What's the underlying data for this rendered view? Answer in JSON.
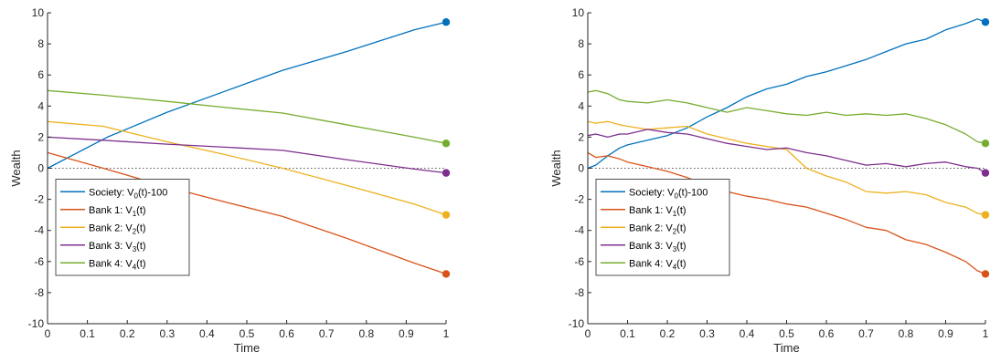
{
  "chart_data": [
    {
      "type": "line",
      "xlabel": "Time",
      "ylabel": "Wealth",
      "xlim": [
        0,
        1
      ],
      "ylim": [
        -10,
        10
      ],
      "xticks": [
        "0",
        "0.1",
        "0.2",
        "0.3",
        "0.4",
        "0.5",
        "0.6",
        "0.7",
        "0.8",
        "0.9",
        "1"
      ],
      "yticks": [
        "-10",
        "-8",
        "-6",
        "-4",
        "-2",
        "0",
        "2",
        "4",
        "6",
        "8",
        "10"
      ],
      "grid": false,
      "legend_position": "bottom-left",
      "reference_line": {
        "y": 0,
        "style": "dotted"
      },
      "series": [
        {
          "name": "Society: V0(t)-100",
          "legend": {
            "pre": "Society: V",
            "sub": "0",
            "post": "(t)-100"
          },
          "color": "#0072BD",
          "x": [
            0,
            0.15,
            0.3,
            0.45,
            0.59,
            0.75,
            0.92,
            1
          ],
          "y": [
            0,
            2.0,
            3.6,
            5.0,
            6.3,
            7.5,
            8.9,
            9.4
          ]
        },
        {
          "name": "Bank 1: V1(t)",
          "legend": {
            "pre": "Bank 1: V",
            "sub": "1",
            "post": "(t)"
          },
          "color": "#D95319",
          "x": [
            0,
            0.14,
            0.3,
            0.45,
            0.59,
            0.75,
            0.92,
            1
          ],
          "y": [
            1.0,
            0.0,
            -1.2,
            -2.2,
            -3.1,
            -4.5,
            -6.1,
            -6.8
          ]
        },
        {
          "name": "Bank 2: V2(t)",
          "legend": {
            "pre": "Bank 2: V",
            "sub": "2",
            "post": "(t)"
          },
          "color": "#EDB120",
          "x": [
            0,
            0.14,
            0.3,
            0.45,
            0.59,
            0.75,
            0.92,
            1
          ],
          "y": [
            3.0,
            2.7,
            1.7,
            0.85,
            0.0,
            -1.1,
            -2.3,
            -3.0
          ]
        },
        {
          "name": "Bank 3: V3(t)",
          "legend": {
            "pre": "Bank 3: V",
            "sub": "3",
            "post": "(t)"
          },
          "color": "#7E2F8E",
          "x": [
            0,
            0.14,
            0.3,
            0.45,
            0.59,
            0.75,
            0.92,
            1
          ],
          "y": [
            2.0,
            1.8,
            1.55,
            1.35,
            1.15,
            0.55,
            -0.05,
            -0.3
          ]
        },
        {
          "name": "Bank 4: V4(t)",
          "legend": {
            "pre": "Bank 4: V",
            "sub": "4",
            "post": "(t)"
          },
          "color": "#77AC30",
          "x": [
            0,
            0.14,
            0.3,
            0.45,
            0.59,
            0.75,
            0.92,
            1
          ],
          "y": [
            5.0,
            4.7,
            4.3,
            3.9,
            3.55,
            2.8,
            2.0,
            1.6
          ]
        }
      ]
    },
    {
      "type": "line",
      "xlabel": "Time",
      "ylabel": "Wealth",
      "xlim": [
        0,
        1
      ],
      "ylim": [
        -10,
        10
      ],
      "xticks": [
        "0",
        "0.1",
        "0.2",
        "0.3",
        "0.4",
        "0.5",
        "0.6",
        "0.7",
        "0.8",
        "0.9",
        "1"
      ],
      "yticks": [
        "-10",
        "-8",
        "-6",
        "-4",
        "-2",
        "0",
        "2",
        "4",
        "6",
        "8",
        "10"
      ],
      "grid": false,
      "legend_position": "bottom-left",
      "reference_line": {
        "y": 0,
        "style": "dotted"
      },
      "series": [
        {
          "name": "Society: V0(t)-100",
          "legend": {
            "pre": "Society: V",
            "sub": "0",
            "post": "(t)-100"
          },
          "color": "#0072BD",
          "x": [
            0,
            0.02,
            0.05,
            0.08,
            0.1,
            0.15,
            0.2,
            0.25,
            0.3,
            0.35,
            0.4,
            0.45,
            0.5,
            0.55,
            0.6,
            0.65,
            0.7,
            0.75,
            0.8,
            0.85,
            0.9,
            0.95,
            0.98,
            1
          ],
          "y": [
            0,
            0.2,
            0.8,
            1.3,
            1.5,
            1.8,
            2.1,
            2.6,
            3.3,
            3.9,
            4.6,
            5.1,
            5.4,
            5.9,
            6.2,
            6.6,
            7.0,
            7.5,
            8.0,
            8.3,
            8.9,
            9.3,
            9.6,
            9.4
          ]
        },
        {
          "name": "Bank 1: V1(t)",
          "legend": {
            "pre": "Bank 1: V",
            "sub": "1",
            "post": "(t)"
          },
          "color": "#D95319",
          "x": [
            0,
            0.02,
            0.05,
            0.08,
            0.1,
            0.15,
            0.2,
            0.25,
            0.3,
            0.35,
            0.4,
            0.45,
            0.5,
            0.55,
            0.6,
            0.65,
            0.7,
            0.75,
            0.8,
            0.85,
            0.9,
            0.95,
            0.98,
            1
          ],
          "y": [
            1.0,
            0.7,
            0.8,
            0.6,
            0.4,
            0.1,
            -0.2,
            -0.6,
            -1.1,
            -1.5,
            -1.8,
            -2.0,
            -2.3,
            -2.5,
            -2.9,
            -3.3,
            -3.8,
            -4.0,
            -4.6,
            -4.9,
            -5.4,
            -6.0,
            -6.6,
            -6.8
          ]
        },
        {
          "name": "Bank 2: V2(t)",
          "legend": {
            "pre": "Bank 2: V",
            "sub": "2",
            "post": "(t)"
          },
          "color": "#EDB120",
          "x": [
            0,
            0.02,
            0.05,
            0.08,
            0.1,
            0.15,
            0.2,
            0.25,
            0.3,
            0.35,
            0.4,
            0.45,
            0.5,
            0.55,
            0.6,
            0.65,
            0.7,
            0.75,
            0.8,
            0.85,
            0.9,
            0.95,
            0.98,
            1
          ],
          "y": [
            3.0,
            2.9,
            3.0,
            2.8,
            2.7,
            2.5,
            2.6,
            2.7,
            2.2,
            1.9,
            1.6,
            1.4,
            1.2,
            0.0,
            -0.5,
            -0.9,
            -1.5,
            -1.6,
            -1.5,
            -1.7,
            -2.2,
            -2.5,
            -2.9,
            -3.0
          ]
        },
        {
          "name": "Bank 3: V3(t)",
          "legend": {
            "pre": "Bank 3: V",
            "sub": "3",
            "post": "(t)"
          },
          "color": "#7E2F8E",
          "x": [
            0,
            0.02,
            0.05,
            0.08,
            0.1,
            0.15,
            0.2,
            0.25,
            0.3,
            0.35,
            0.4,
            0.45,
            0.5,
            0.55,
            0.6,
            0.65,
            0.7,
            0.75,
            0.8,
            0.85,
            0.9,
            0.95,
            0.98,
            1
          ],
          "y": [
            2.1,
            2.2,
            2.0,
            2.2,
            2.2,
            2.5,
            2.3,
            2.2,
            1.9,
            1.6,
            1.4,
            1.2,
            1.3,
            1.0,
            0.8,
            0.5,
            0.2,
            0.3,
            0.1,
            0.3,
            0.4,
            0.1,
            0.0,
            -0.3
          ]
        },
        {
          "name": "Bank 4: V4(t)",
          "legend": {
            "pre": "Bank 4: V",
            "sub": "4",
            "post": "(t)"
          },
          "color": "#77AC30",
          "x": [
            0,
            0.02,
            0.05,
            0.08,
            0.1,
            0.15,
            0.2,
            0.25,
            0.3,
            0.35,
            0.4,
            0.45,
            0.5,
            0.55,
            0.6,
            0.65,
            0.7,
            0.75,
            0.8,
            0.85,
            0.9,
            0.95,
            0.98,
            1
          ],
          "y": [
            4.9,
            5.0,
            4.8,
            4.4,
            4.3,
            4.2,
            4.4,
            4.2,
            3.9,
            3.6,
            3.9,
            3.7,
            3.5,
            3.4,
            3.6,
            3.4,
            3.5,
            3.4,
            3.5,
            3.2,
            2.8,
            2.2,
            1.7,
            1.6
          ]
        }
      ]
    }
  ]
}
